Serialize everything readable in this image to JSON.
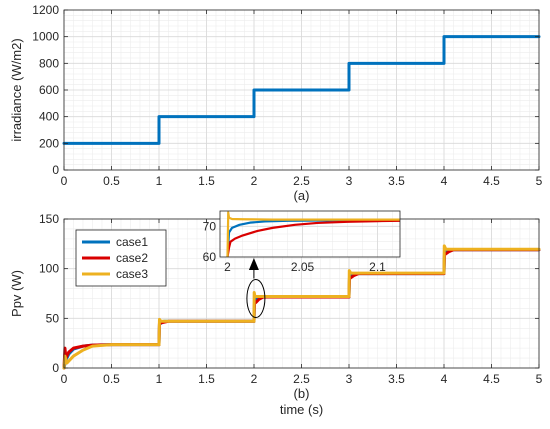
{
  "chart_data": [
    {
      "type": "line",
      "panel_label": "(a)",
      "ylabel": "irradiance (W/m2)",
      "xlabel": "",
      "xlim": [
        0,
        5
      ],
      "ylim": [
        0,
        1200
      ],
      "xticks": [
        0,
        0.5,
        1,
        1.5,
        2,
        2.5,
        3,
        3.5,
        4,
        4.5,
        5
      ],
      "xtick_labels": [
        "0",
        "0.5",
        "1",
        "1.5",
        "2",
        "2.5",
        "3",
        "3.5",
        "4",
        "4.5",
        "5"
      ],
      "yticks": [
        0,
        200,
        400,
        600,
        800,
        1000,
        1200
      ],
      "ytick_labels": [
        "0",
        "200",
        "400",
        "600",
        "800",
        "1000",
        "1200"
      ],
      "grid": "on (major and minor)",
      "series": [
        {
          "color": "#0072BD",
          "x": [
            0,
            1,
            1,
            2,
            2,
            3,
            3,
            4,
            4,
            5
          ],
          "y": [
            200,
            200,
            400,
            400,
            600,
            600,
            800,
            800,
            1000,
            1000
          ]
        }
      ]
    },
    {
      "type": "line",
      "panel_label": "(b)",
      "ylabel": "Ppv (W)",
      "xlabel": "time (s)",
      "xlim": [
        0,
        5
      ],
      "ylim": [
        0,
        150
      ],
      "xticks": [
        0,
        0.5,
        1,
        1.5,
        2,
        2.5,
        3,
        3.5,
        4,
        4.5,
        5
      ],
      "xtick_labels": [
        "0",
        "0.5",
        "1",
        "1.5",
        "2",
        "2.5",
        "3",
        "3.5",
        "4",
        "4.5",
        "5"
      ],
      "yticks": [
        0,
        50,
        100,
        150
      ],
      "ytick_labels": [
        "0",
        "50",
        "100",
        "150"
      ],
      "grid": "on (major and minor)",
      "legend_position": "left",
      "series": [
        {
          "name": "case1",
          "color": "#0072BD",
          "x": [
            0,
            0.02,
            0.05,
            0.1,
            0.2,
            0.3,
            0.5,
            1,
            1.005,
            1.05,
            2,
            2.005,
            2.02,
            2.05,
            2.1,
            3,
            3.005,
            3.05,
            4,
            4.005,
            4.05,
            5
          ],
          "y": [
            0,
            8,
            14,
            19,
            22,
            23,
            23.5,
            23.5,
            44,
            47,
            47,
            65,
            69,
            71,
            71.5,
            71.5,
            91,
            95,
            95,
            116,
            119,
            119
          ]
        },
        {
          "name": "case2",
          "color": "#D90000",
          "x": [
            0,
            0.01,
            0.02,
            0.05,
            0.1,
            0.2,
            0.3,
            0.5,
            1,
            1.005,
            1.05,
            1.1,
            2,
            2.005,
            2.02,
            2.05,
            2.1,
            3,
            3.005,
            3.05,
            3.1,
            4,
            4.005,
            4.05,
            4.1,
            5
          ],
          "y": [
            0,
            20,
            10,
            16,
            20,
            22,
            23,
            23.5,
            23.5,
            45,
            46,
            47,
            47,
            65,
            66,
            69,
            71.5,
            71.5,
            90,
            93,
            95,
            95,
            114,
            117,
            119,
            119
          ]
        },
        {
          "name": "case3",
          "color": "#EDB120",
          "x": [
            0,
            0.01,
            0.03,
            0.1,
            0.2,
            0.3,
            0.5,
            1,
            1.005,
            1.02,
            2,
            2.002,
            2.01,
            2.05,
            2.1,
            3,
            3.003,
            3.02,
            4,
            4.003,
            4.02,
            5
          ],
          "y": [
            0,
            12,
            5,
            12,
            18,
            22,
            23.5,
            23.5,
            49,
            47,
            47,
            76,
            72,
            72,
            72,
            72,
            98,
            95.5,
            95.5,
            123,
            119.5,
            119.5
          ]
        }
      ],
      "inset": {
        "xlim": [
          1.995,
          2.115
        ],
        "ylim": [
          60,
          75
        ],
        "xticks": [
          2,
          2.05,
          2.1
        ],
        "xtick_labels": [
          "2",
          "2.05",
          "2.1"
        ],
        "yticks": [
          60,
          70
        ],
        "ytick_labels": [
          "60",
          "70"
        ],
        "series": [
          {
            "name": "case1",
            "color": "#0072BD",
            "x": [
              2,
              2.001,
              2.003,
              2.008,
              2.015,
              2.025,
              2.04,
              2.06,
              2.08,
              2.1,
              2.115
            ],
            "y": [
              60,
              68,
              69.5,
              70.5,
              71.2,
              71.6,
              71.8,
              71.9,
              72,
              72,
              72
            ]
          },
          {
            "name": "case2",
            "color": "#D90000",
            "x": [
              2,
              2.001,
              2.002,
              2.005,
              2.01,
              2.02,
              2.03,
              2.045,
              2.06,
              2.08,
              2.1,
              2.115
            ],
            "y": [
              60,
              63,
              65,
              66,
              67,
              68.5,
              69.5,
              70.5,
              71.1,
              71.5,
              71.7,
              71.8
            ]
          },
          {
            "name": "case3",
            "color": "#EDB120",
            "x": [
              2,
              2.0005,
              2.001,
              2.003,
              2.01,
              2.03,
              2.06,
              2.1,
              2.115
            ],
            "y": [
              60,
              74.5,
              72.8,
              72.4,
              72.3,
              72.2,
              72.2,
              72.2,
              72.2
            ]
          }
        ]
      }
    }
  ]
}
